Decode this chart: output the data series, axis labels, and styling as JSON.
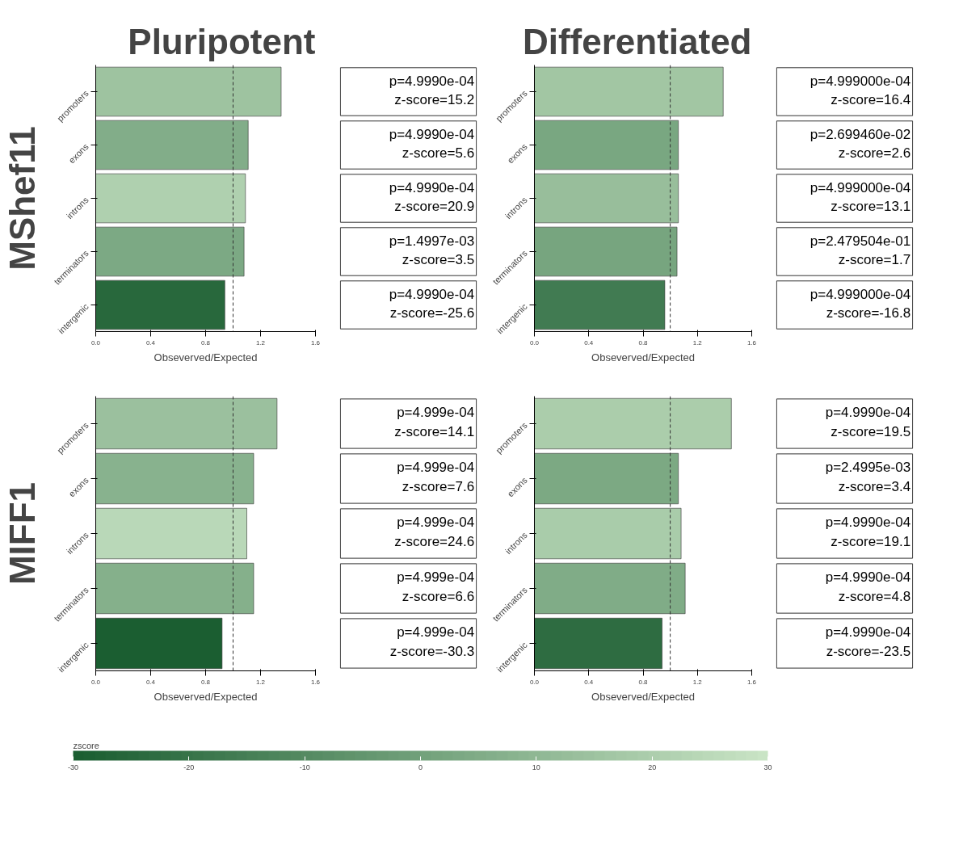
{
  "chart_data": [
    {
      "type": "bar",
      "orientation": "horizontal",
      "title": "Pluripotent",
      "ylabel": "MShef11",
      "xlabel": "Obseverved/Expected",
      "categories": [
        "promoters",
        "exons",
        "introns",
        "terminators",
        "intergenic"
      ],
      "values": [
        1.35,
        1.11,
        1.09,
        1.08,
        0.94
      ],
      "colors": [
        "#9ec3a0",
        "#82ad89",
        "#afd0af",
        "#7ca984",
        "#28683c"
      ],
      "xlim": [
        0,
        1.6
      ],
      "xticks": [
        {
          "value": 0,
          "label": "0.0"
        },
        {
          "value": 0.4,
          "label": "0.4"
        },
        {
          "value": 0.8,
          "label": "0.8"
        },
        {
          "value": 1.2,
          "label": "1.2"
        },
        {
          "value": 1.6,
          "label": "1.6"
        }
      ],
      "ref_lines": [
        {
          "axis": "x",
          "value": 1,
          "line_style": "dashed",
          "color": "#333333"
        }
      ]
    },
    {
      "type": "other",
      "annotations": [
        "p=4.9990e-04",
        "z-score=15.2",
        "p=4.9990e-04",
        "z-score=5.6",
        "p=4.9990e-04",
        "z-score=20.9",
        "p=1.4997e-03",
        "z-score=3.5",
        "p=4.9990e-04",
        "z-score=-25.6"
      ]
    },
    {
      "type": "bar",
      "orientation": "horizontal",
      "title": "Differentiated",
      "xlabel": "Obseverved/Expected",
      "categories": [
        "promoters",
        "exons",
        "introns",
        "terminators",
        "intergenic"
      ],
      "values": [
        1.39,
        1.06,
        1.06,
        1.05,
        0.96
      ],
      "colors": [
        "#a2c6a3",
        "#79a781",
        "#98be9b",
        "#77a57f",
        "#417b52"
      ],
      "xlim": [
        0,
        1.6
      ],
      "xticks": [
        {
          "value": 0,
          "label": "0.0"
        },
        {
          "value": 0.4,
          "label": "0.4"
        },
        {
          "value": 0.8,
          "label": "0.8"
        },
        {
          "value": 1.2,
          "label": "1.2"
        },
        {
          "value": 1.6,
          "label": "1.6"
        }
      ],
      "ref_lines": [
        {
          "axis": "x",
          "value": 1,
          "line_style": "dashed",
          "color": "#333333"
        }
      ]
    },
    {
      "type": "other",
      "annotations": [
        "p=4.999000e-04",
        "z-score=16.4",
        "p=2.699460e-02",
        "z-score=2.6",
        "p=4.999000e-04",
        "z-score=13.1",
        "p=2.479504e-01",
        "z-score=1.7",
        "p=4.999000e-04",
        "z-score=-16.8"
      ]
    },
    {
      "type": "bar",
      "orientation": "horizontal",
      "ylabel": "MIFF1",
      "xlabel": "Obseverved/Expected",
      "categories": [
        "promoters",
        "exons",
        "introns",
        "terminators",
        "intergenic"
      ],
      "values": [
        1.32,
        1.15,
        1.1,
        1.15,
        0.92
      ],
      "colors": [
        "#9bc09e",
        "#88b28e",
        "#b9d8b8",
        "#85b08b",
        "#1b5e31"
      ],
      "xlim": [
        0,
        1.6
      ],
      "xticks": [
        {
          "value": 0,
          "label": "0.0"
        },
        {
          "value": 0.4,
          "label": "0.4"
        },
        {
          "value": 0.8,
          "label": "0.8"
        },
        {
          "value": 1.2,
          "label": "1.2"
        },
        {
          "value": 1.6,
          "label": "1.6"
        }
      ],
      "ref_lines": [
        {
          "axis": "x",
          "value": 1,
          "line_style": "dashed",
          "color": "#333333"
        }
      ]
    },
    {
      "type": "other",
      "annotations": [
        "p=4.999e-04",
        "z-score=14.1",
        "p=4.999e-04",
        "z-score=7.6",
        "p=4.999e-04",
        "z-score=24.6",
        "p=4.999e-04",
        "z-score=6.6",
        "p=4.999e-04",
        "z-score=-30.3"
      ]
    },
    {
      "type": "bar",
      "orientation": "horizontal",
      "xlabel": "Obseverved/Expected",
      "categories": [
        "promoters",
        "exons",
        "introns",
        "terminators",
        "intergenic"
      ],
      "values": [
        1.45,
        1.06,
        1.08,
        1.11,
        0.94
      ],
      "colors": [
        "#abcdab",
        "#7ca983",
        "#a9ccaa",
        "#80ac87",
        "#2e6c41"
      ],
      "clabel": "zscore",
      "clim": [
        -30,
        30
      ],
      "cticks": [
        -30,
        -20,
        -10,
        0,
        10,
        20,
        30
      ],
      "xlim": [
        0,
        1.6
      ],
      "xticks": [
        {
          "value": 0,
          "label": "0.0"
        },
        {
          "value": 0.4,
          "label": "0.4"
        },
        {
          "value": 0.8,
          "label": "0.8"
        },
        {
          "value": 1.2,
          "label": "1.2"
        },
        {
          "value": 1.6,
          "label": "1.6"
        }
      ],
      "ref_lines": [
        {
          "axis": "x",
          "value": 1,
          "line_style": "dashed",
          "color": "#333333"
        }
      ]
    },
    {
      "type": "other",
      "annotations": [
        "p=4.9990e-04",
        "z-score=19.5",
        "p=2.4995e-03",
        "z-score=3.4",
        "p=4.9990e-04",
        "z-score=19.1",
        "p=4.9990e-04",
        "z-score=4.8",
        "p=4.9990e-04",
        "z-score=-23.5"
      ]
    }
  ]
}
